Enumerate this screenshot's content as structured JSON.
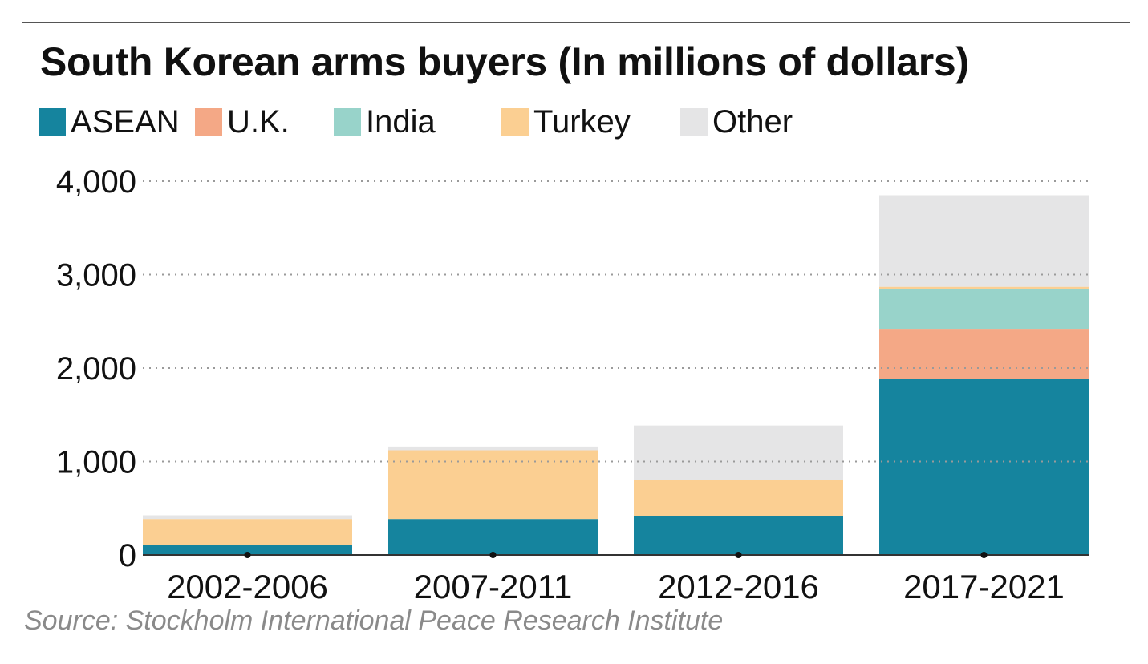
{
  "chart_data": {
    "type": "bar",
    "stacked": true,
    "title": "South Korean arms buyers (In millions of dollars)",
    "source": "Source: Stockholm International Peace Research Institute",
    "categories": [
      "2002-2006",
      "2007-2011",
      "2012-2016",
      "2017-2021"
    ],
    "series": [
      {
        "name": "ASEAN",
        "color": "#15849e",
        "values": [
          105,
          385,
          420,
          1880
        ]
      },
      {
        "name": "U.K.",
        "color": "#f4a886",
        "values": [
          0,
          0,
          0,
          540
        ]
      },
      {
        "name": "India",
        "color": "#98d3ca",
        "values": [
          0,
          0,
          0,
          430
        ]
      },
      {
        "name": "Turkey",
        "color": "#fbcf92",
        "values": [
          280,
          735,
          385,
          20
        ]
      },
      {
        "name": "Other",
        "color": "#e5e5e6",
        "values": [
          40,
          40,
          580,
          980
        ]
      }
    ],
    "ylim": [
      0,
      4000
    ],
    "yticks": [
      0,
      1000,
      2000,
      3000,
      4000
    ],
    "ytick_labels": [
      "0",
      "1,000",
      "2,000",
      "3,000",
      "4,000"
    ],
    "grid": true,
    "legend_position": "top-left"
  }
}
